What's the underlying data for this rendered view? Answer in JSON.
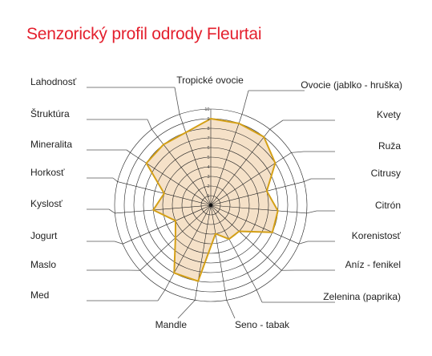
{
  "chart_data": {
    "type": "radar",
    "title": "Senzorický profil odrody Fleurtai",
    "axes": [
      "Tropické ovocie",
      "Ovocie (jablko - hruška)",
      "Kvety",
      "Ruža",
      "Citrusy",
      "Citrón",
      "Korenistosť",
      "Aníz - fenikel",
      "Zelenina (paprika)",
      "Seno - tabak",
      "Mandle",
      "Med",
      "Maslo",
      "Jogurt",
      "Kyslosť",
      "Horkosť",
      "Mineralita",
      "Štruktúra",
      "Lahodnosť"
    ],
    "values": [
      9,
      9,
      9,
      8,
      6,
      7,
      7,
      4,
      4,
      3,
      8,
      8,
      5,
      4,
      6,
      5,
      8,
      8,
      8
    ],
    "rmax": 10,
    "ticks": [
      1,
      2,
      3,
      4,
      5,
      6,
      7,
      8,
      9,
      10
    ],
    "line_color": "#d4a017",
    "fill_color": "#f5e1c8",
    "grid_color": "#222222"
  }
}
